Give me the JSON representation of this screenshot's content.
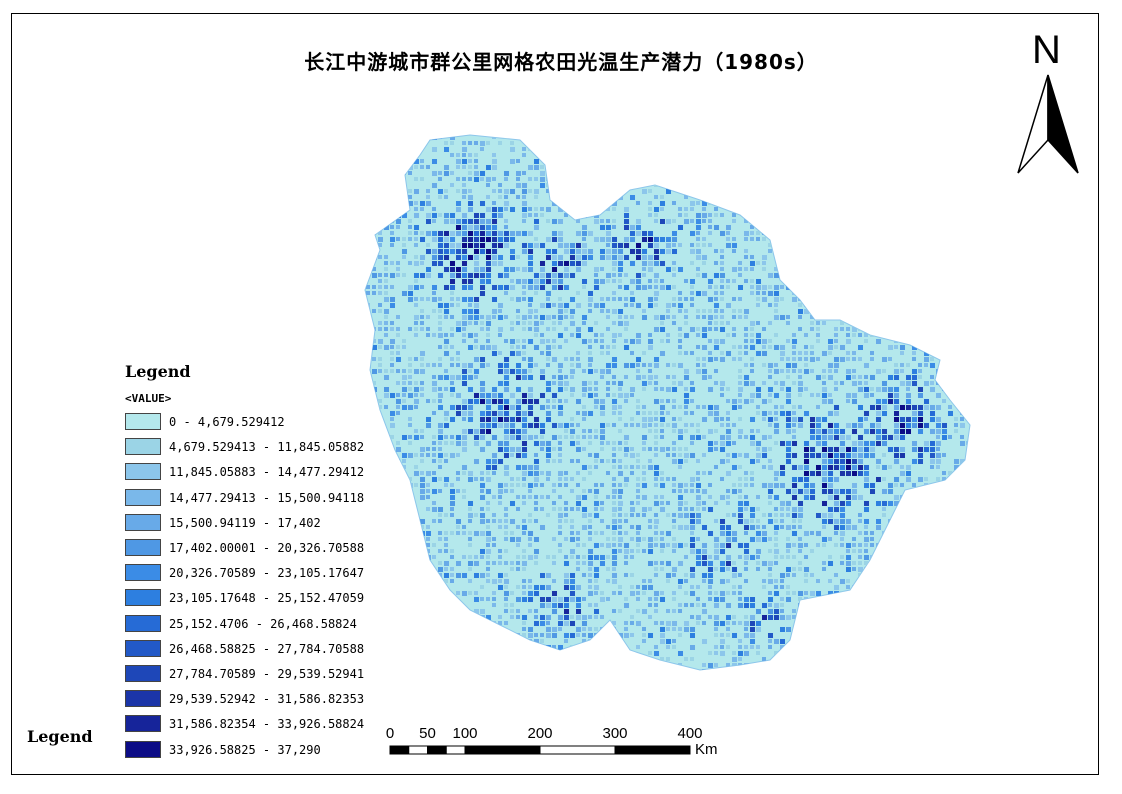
{
  "title": "长江中游城市群公里网格农田光温生产潜力（1980s）",
  "north_label": "N",
  "legend": {
    "title": "Legend",
    "field": "<VALUE>",
    "classes": [
      {
        "label": "0 - 4,679.529412",
        "color": "#b4e8ec"
      },
      {
        "label": "4,679.529413 - 11,845.05882",
        "color": "#9bd4e6"
      },
      {
        "label": "11,845.05883 - 14,477.29412",
        "color": "#8cc6eb"
      },
      {
        "label": "14,477.29413 - 15,500.94118",
        "color": "#7ab8ea"
      },
      {
        "label": "15,500.94119 - 17,402",
        "color": "#68aae8"
      },
      {
        "label": "17,402.00001 - 20,326.70588",
        "color": "#4f98e4"
      },
      {
        "label": "20,326.70589 - 23,105.17647",
        "color": "#3b8ce6"
      },
      {
        "label": "23,105.17648 - 25,152.47059",
        "color": "#2d7fe0"
      },
      {
        "label": "25,152.4706 - 26,468.58824",
        "color": "#266bd6"
      },
      {
        "label": "26,468.58825 - 27,784.70588",
        "color": "#2259c7"
      },
      {
        "label": "27,784.70589 - 29,539.52941",
        "color": "#1e47b8"
      },
      {
        "label": "29,539.52942 - 31,586.82353",
        "color": "#1b35a8"
      },
      {
        "label": "31,586.82354 - 33,926.58824",
        "color": "#16249a"
      },
      {
        "label": "33,926.58825 - 37,290",
        "color": "#0c0c86"
      }
    ]
  },
  "bottom_legend": "Legend",
  "scale_bar": {
    "ticks": [
      "0",
      "50",
      "100",
      "200",
      "300",
      "400"
    ],
    "tick_values": [
      0,
      50,
      100,
      200,
      300,
      400
    ],
    "unit": "Km"
  }
}
